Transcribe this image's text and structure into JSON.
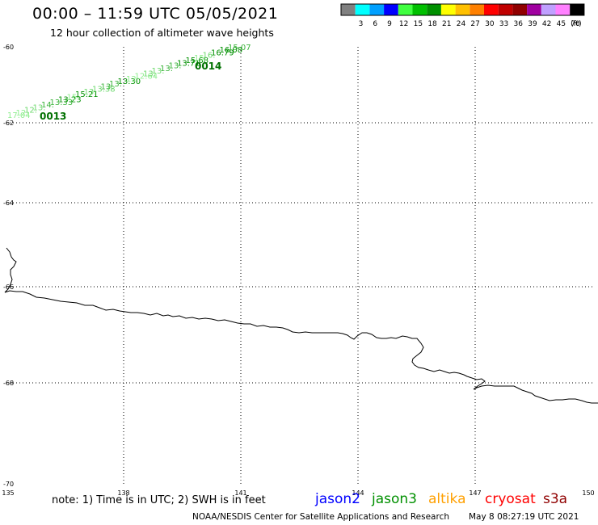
{
  "header": {
    "title": "00:00 – 11:59 UTC 05/05/2021",
    "subtitle": "12 hour collection of altimeter wave heights"
  },
  "legend": {
    "colors": [
      "#808080",
      "#00ffff",
      "#00a0ff",
      "#0000ff",
      "#40ff40",
      "#00c000",
      "#009000",
      "#ffff00",
      "#ffc000",
      "#ff8000",
      "#ff0000",
      "#c00000",
      "#900000",
      "#a000a0",
      "#c0a0ff",
      "#ff80ff",
      "#000000"
    ],
    "labels": [
      "3",
      "6",
      "9",
      "12",
      "15",
      "18",
      "21",
      "24",
      "27",
      "30",
      "33",
      "36",
      "39",
      "42",
      "45",
      "70",
      "(ft)"
    ]
  },
  "map": {
    "lat_labels": [
      "-60",
      "-62",
      "-64",
      "-66",
      "-68",
      "-70"
    ],
    "lon_labels": [
      "135",
      "138",
      "141",
      "144",
      "147",
      "150"
    ]
  },
  "tracks": [
    {
      "name": "0013-0014",
      "time_labels": [
        "0013",
        "0014"
      ],
      "swh_labels": [
        "17.04",
        "12.",
        "12.",
        "13.",
        "14.",
        "13.33",
        "13.23",
        "15.",
        "15.21",
        "13.",
        "13.38",
        "13.",
        "13.",
        "13.30",
        "12.",
        "12.64",
        "13.",
        "13.",
        "13.",
        "13.",
        "13.71",
        "15.68",
        "15.",
        "16.",
        "16.79",
        "16.08",
        "15.07"
      ],
      "colors": [
        "#90ee90",
        "#6fda6f",
        "#3cb43c",
        "#009000"
      ]
    }
  ],
  "footer": {
    "note": "note: 1) Time is in UTC; 2) SWH is in feet",
    "missions": [
      {
        "label": "jason2",
        "color": "#0000ff"
      },
      {
        "label": "jason3",
        "color": "#009000"
      },
      {
        "label": "altika",
        "color": "#ffa000"
      },
      {
        "label": "cryosat",
        "color": "#ff0000"
      },
      {
        "label": "s3a",
        "color": "#900000"
      }
    ],
    "credit": "NOAA/NESDIS Center for Satellite Applications and Research",
    "timestamp": "May  8 08:27:19 UTC 2021"
  }
}
